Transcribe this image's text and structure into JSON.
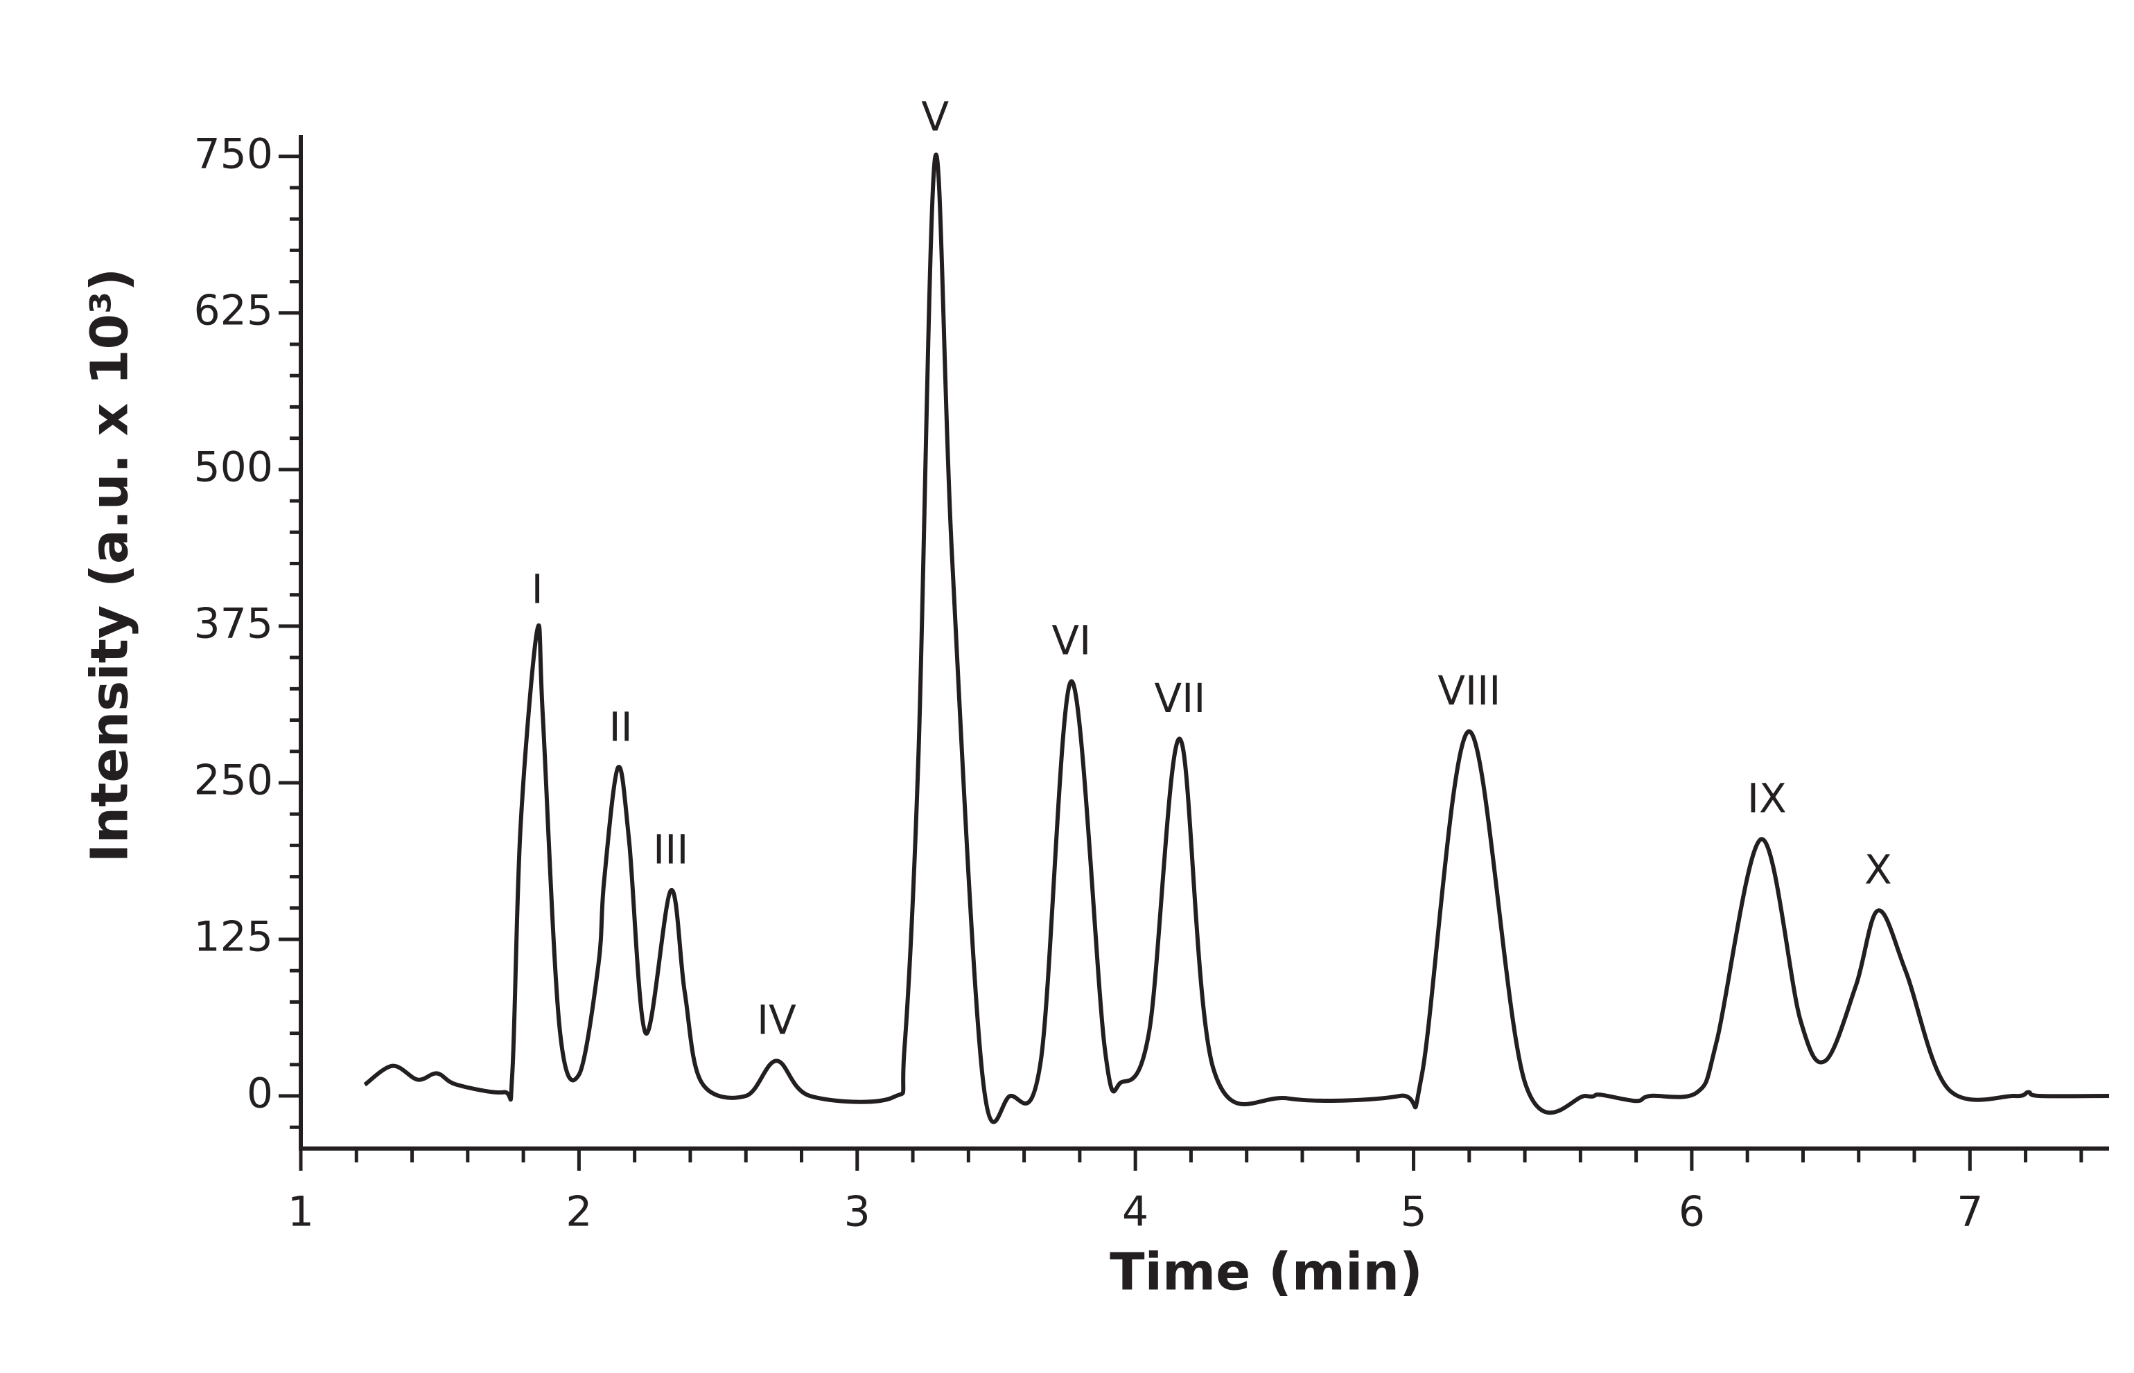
{
  "chart_data": {
    "type": "line",
    "xlabel": "Time (min)",
    "ylabel": "Intensity (a.u. x 10³)",
    "xlim": [
      1,
      7.5
    ],
    "ylim": [
      -42,
      767
    ],
    "xticks": [
      1,
      2,
      3,
      4,
      5,
      6,
      7
    ],
    "xminorticks": [
      1.2,
      1.4,
      1.6,
      1.8,
      2.2,
      2.4,
      2.6,
      2.8,
      3.2,
      3.4,
      3.6,
      3.8,
      4.2,
      4.4,
      4.6,
      4.8,
      5.2,
      5.4,
      5.6,
      5.8,
      6.2,
      6.4,
      6.6,
      6.8,
      7.2,
      7.4
    ],
    "yticks": [
      0,
      125,
      250,
      375,
      500,
      625,
      750
    ],
    "yminorticks": [
      -25,
      25,
      50,
      75,
      100,
      150,
      175,
      200,
      225,
      275,
      300,
      325,
      350,
      400,
      425,
      450,
      475,
      525,
      550,
      575,
      600,
      650,
      675,
      700,
      725
    ],
    "series": [
      {
        "color": "#231f20",
        "x": [
          1.23,
          1.33,
          1.42,
          1.49,
          1.56,
          1.73,
          1.76,
          1.79,
          1.85,
          1.87,
          1.93,
          2.0,
          2.07,
          2.09,
          2.14,
          2.18,
          2.24,
          2.33,
          2.38,
          2.44,
          2.6,
          2.71,
          2.83,
          3.13,
          3.17,
          3.22,
          3.28,
          3.34,
          3.45,
          3.55,
          3.66,
          3.77,
          3.89,
          3.95,
          4.05,
          4.16,
          4.28,
          4.55,
          4.95,
          5.03,
          5.2,
          5.4,
          5.62,
          5.67,
          5.8,
          5.85,
          6.02,
          6.09,
          6.25,
          6.39,
          6.48,
          6.59,
          6.67,
          6.77,
          6.92,
          7.16,
          7.21,
          7.25,
          7.5
        ],
        "values": [
          9,
          24,
          13,
          18,
          9,
          3,
          17,
          215,
          372,
          303,
          55,
          17,
          105,
          171,
          262,
          204,
          50,
          164,
          83,
          11,
          0,
          28,
          0,
          -1,
          38,
          270,
          749,
          435,
          17,
          0,
          28,
          331,
          38,
          11,
          52,
          285,
          22,
          -2,
          0,
          17,
          291,
          11,
          0,
          1,
          -4,
          0,
          3,
          44,
          205,
          61,
          28,
          88,
          148,
          99,
          6,
          0,
          3,
          0,
          0
        ]
      }
    ],
    "annotations": [
      {
        "text": "I",
        "x": 1.85,
        "y": 372
      },
      {
        "text": "II",
        "x": 2.15,
        "y": 262
      },
      {
        "text": "III",
        "x": 2.33,
        "y": 164
      },
      {
        "text": "IV",
        "x": 2.71,
        "y": 28
      },
      {
        "text": "V",
        "x": 3.28,
        "y": 749
      },
      {
        "text": "VI",
        "x": 3.77,
        "y": 331
      },
      {
        "text": "VII",
        "x": 4.16,
        "y": 285
      },
      {
        "text": "VIII",
        "x": 5.2,
        "y": 291
      },
      {
        "text": "IX",
        "x": 6.27,
        "y": 205
      },
      {
        "text": "X",
        "x": 6.67,
        "y": 148
      }
    ]
  }
}
